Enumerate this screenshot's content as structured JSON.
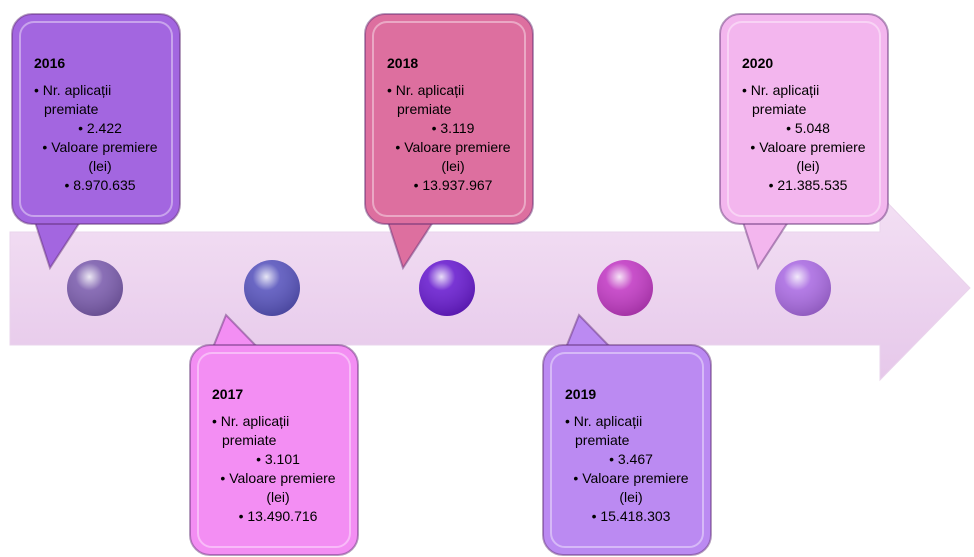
{
  "timeline": {
    "items": [
      {
        "year": "2016",
        "label1": "Nr. aplicații premiate",
        "value1": "2.422",
        "label2": "Valoare premiere (lei)",
        "value2": "8.970.635",
        "color": "#a366e0",
        "dot": "#7d5fae"
      },
      {
        "year": "2017",
        "label1": "Nr. aplicații premiate",
        "value1": "3.101",
        "label2": "Valoare premiere (lei)",
        "value2": "13.490.716",
        "color": "#f38ef3",
        "dot": "#5a56bd"
      },
      {
        "year": "2018",
        "label1": "Nr. aplicații premiate",
        "value1": "3.119",
        "label2": "Valoare premiere (lei)",
        "value2": "13.937.967",
        "color": "#dd6f9f",
        "dot": "#6a1fcf"
      },
      {
        "year": "2019",
        "label1": "Nr. aplicații premiate",
        "value1": "3.467",
        "label2": "Valoare premiere (lei)",
        "value2": "15.418.303",
        "color": "#bb8af2",
        "dot": "#c23dc4"
      },
      {
        "year": "2020",
        "label1": "Nr. aplicații premiate",
        "value1": "5.048",
        "label2": "Valoare premiere (lei)",
        "value2": "21.385.535",
        "color": "#f3b6ee",
        "dot": "#ab6de2"
      }
    ]
  }
}
